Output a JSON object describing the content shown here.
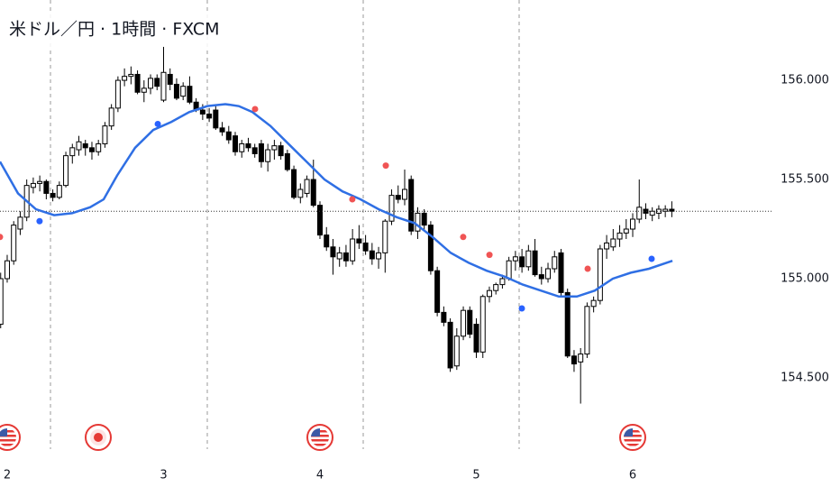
{
  "chart_data": {
    "type": "candlestick",
    "title": "米ドル／円 · 1時間 · FXCM",
    "x": [
      1.9583,
      2,
      2.0417,
      2.0833,
      2.125,
      2.1667,
      2.2083,
      2.25,
      2.2917,
      2.3333,
      2.375,
      2.4167,
      2.4583,
      2.5,
      2.5417,
      2.5833,
      2.625,
      2.6667,
      2.7083,
      2.75,
      2.7917,
      2.8333,
      2.875,
      2.9167,
      2.9583,
      3,
      3.0417,
      3.0833,
      3.125,
      3.1667,
      3.2083,
      3.25,
      3.2917,
      3.3333,
      3.375,
      3.4167,
      3.4583,
      3.5,
      3.5417,
      3.5833,
      3.625,
      3.6667,
      3.7083,
      3.75,
      3.7917,
      3.8333,
      3.875,
      3.9167,
      3.9583,
      4,
      4.0417,
      4.0833,
      4.125,
      4.1667,
      4.2083,
      4.25,
      4.2917,
      4.3333,
      4.375,
      4.4167,
      4.4583,
      4.5,
      4.5417,
      4.5833,
      4.625,
      4.6667,
      4.7083,
      4.75,
      4.7917,
      4.8333,
      4.875,
      4.9167,
      4.9583,
      5,
      5.0417,
      5.0833,
      5.125,
      5.1667,
      5.2083,
      5.25,
      5.2917,
      5.3333,
      5.375,
      5.4167,
      5.4583,
      5.5,
      5.5417,
      5.5833,
      5.625,
      5.6667,
      5.7083,
      5.75,
      5.7917,
      5.8333,
      5.875,
      5.9167,
      5.9583,
      6,
      6.0417,
      6.0833,
      6.125,
      6.1667,
      6.2083,
      6.25
    ],
    "ohlc": [
      [
        154.77,
        155.03,
        154.75,
        155.0
      ],
      [
        155.0,
        155.12,
        154.98,
        155.09
      ],
      [
        155.09,
        155.29,
        155.07,
        155.27
      ],
      [
        155.25,
        155.34,
        155.22,
        155.31
      ],
      [
        155.31,
        155.5,
        155.29,
        155.47
      ],
      [
        155.46,
        155.51,
        155.43,
        155.48
      ],
      [
        155.48,
        155.52,
        155.44,
        155.49
      ],
      [
        155.49,
        155.5,
        155.4,
        155.43
      ],
      [
        155.43,
        155.45,
        155.39,
        155.41
      ],
      [
        155.41,
        155.49,
        155.4,
        155.47
      ],
      [
        155.47,
        155.64,
        155.46,
        155.62
      ],
      [
        155.62,
        155.68,
        155.58,
        155.66
      ],
      [
        155.65,
        155.72,
        155.62,
        155.69
      ],
      [
        155.68,
        155.7,
        155.62,
        155.66
      ],
      [
        155.66,
        155.69,
        155.6,
        155.64
      ],
      [
        155.64,
        155.7,
        155.62,
        155.68
      ],
      [
        155.68,
        155.79,
        155.66,
        155.77
      ],
      [
        155.77,
        155.88,
        155.75,
        155.86
      ],
      [
        155.86,
        156.02,
        155.84,
        156.0
      ],
      [
        156.0,
        156.06,
        155.97,
        156.02
      ],
      [
        156.02,
        156.07,
        155.98,
        156.03
      ],
      [
        156.03,
        156.05,
        155.93,
        155.94
      ],
      [
        155.94,
        156.0,
        155.89,
        155.96
      ],
      [
        155.96,
        156.03,
        155.93,
        156.01
      ],
      [
        156.01,
        156.03,
        155.95,
        155.97
      ],
      [
        155.9,
        156.17,
        155.89,
        156.04
      ],
      [
        156.03,
        156.06,
        155.95,
        155.98
      ],
      [
        155.98,
        156.01,
        155.9,
        155.91
      ],
      [
        155.92,
        155.99,
        155.9,
        155.97
      ],
      [
        155.97,
        156.02,
        155.88,
        155.89
      ],
      [
        155.89,
        155.91,
        155.84,
        155.85
      ],
      [
        155.85,
        155.88,
        155.8,
        155.83
      ],
      [
        155.83,
        155.86,
        155.79,
        155.81
      ],
      [
        155.85,
        155.87,
        155.75,
        155.76
      ],
      [
        155.76,
        155.79,
        155.72,
        155.74
      ],
      [
        155.74,
        155.77,
        155.68,
        155.7
      ],
      [
        155.72,
        155.74,
        155.62,
        155.64
      ],
      [
        155.64,
        155.7,
        155.61,
        155.68
      ],
      [
        155.68,
        155.71,
        155.64,
        155.66
      ],
      [
        155.66,
        155.68,
        155.61,
        155.63
      ],
      [
        155.68,
        155.7,
        155.56,
        155.59
      ],
      [
        155.59,
        155.68,
        155.54,
        155.65
      ],
      [
        155.65,
        155.7,
        155.6,
        155.67
      ],
      [
        155.67,
        155.69,
        155.6,
        155.62
      ],
      [
        155.63,
        155.65,
        155.54,
        155.55
      ],
      [
        155.55,
        155.57,
        155.4,
        155.41
      ],
      [
        155.41,
        155.48,
        155.38,
        155.45
      ],
      [
        155.43,
        155.52,
        155.41,
        155.5
      ],
      [
        155.5,
        155.6,
        155.36,
        155.37
      ],
      [
        155.37,
        155.39,
        155.2,
        155.22
      ],
      [
        155.22,
        155.26,
        155.14,
        155.16
      ],
      [
        155.16,
        155.2,
        155.02,
        155.11
      ],
      [
        155.1,
        155.16,
        155.06,
        155.13
      ],
      [
        155.13,
        155.17,
        155.06,
        155.09
      ],
      [
        155.09,
        155.25,
        155.07,
        155.2
      ],
      [
        155.2,
        155.27,
        155.15,
        155.18
      ],
      [
        155.18,
        155.22,
        155.12,
        155.14
      ],
      [
        155.14,
        155.18,
        155.07,
        155.1
      ],
      [
        155.1,
        155.16,
        155.05,
        155.13
      ],
      [
        155.13,
        155.3,
        155.03,
        155.29
      ],
      [
        155.29,
        155.45,
        155.27,
        155.42
      ],
      [
        155.42,
        155.47,
        155.38,
        155.4
      ],
      [
        155.4,
        155.55,
        155.37,
        155.45
      ],
      [
        155.5,
        155.52,
        155.22,
        155.24
      ],
      [
        155.24,
        155.36,
        155.2,
        155.33
      ],
      [
        155.33,
        155.35,
        155.24,
        155.27
      ],
      [
        155.27,
        155.29,
        155.02,
        155.04
      ],
      [
        155.04,
        155.06,
        154.81,
        154.83
      ],
      [
        154.83,
        154.86,
        154.76,
        154.78
      ],
      [
        154.78,
        154.8,
        154.53,
        154.55
      ],
      [
        154.56,
        154.75,
        154.54,
        154.71
      ],
      [
        154.71,
        154.86,
        154.69,
        154.84
      ],
      [
        154.84,
        154.86,
        154.7,
        154.72
      ],
      [
        154.77,
        154.8,
        154.6,
        154.63
      ],
      [
        154.63,
        154.92,
        154.6,
        154.91
      ],
      [
        154.91,
        154.96,
        154.88,
        154.94
      ],
      [
        154.94,
        154.98,
        154.92,
        154.97
      ],
      [
        154.97,
        155.02,
        154.95,
        155.0
      ],
      [
        155.0,
        155.11,
        154.99,
        155.09
      ],
      [
        155.09,
        155.14,
        155.04,
        155.11
      ],
      [
        155.11,
        155.15,
        155.03,
        155.06
      ],
      [
        155.06,
        155.17,
        155.04,
        155.14
      ],
      [
        155.14,
        155.2,
        155.01,
        155.02
      ],
      [
        155.02,
        155.06,
        154.97,
        155.0
      ],
      [
        155.0,
        155.08,
        154.98,
        155.05
      ],
      [
        155.05,
        155.14,
        155.03,
        155.11
      ],
      [
        155.13,
        155.15,
        154.91,
        154.93
      ],
      [
        154.93,
        154.95,
        154.6,
        154.61
      ],
      [
        154.61,
        154.64,
        154.53,
        154.57
      ],
      [
        154.58,
        154.65,
        154.37,
        154.62
      ],
      [
        154.62,
        154.88,
        154.6,
        154.86
      ],
      [
        154.86,
        154.91,
        154.83,
        154.89
      ],
      [
        154.89,
        155.17,
        154.87,
        155.15
      ],
      [
        155.15,
        155.22,
        155.1,
        155.18
      ],
      [
        155.16,
        155.25,
        155.14,
        155.2
      ],
      [
        155.2,
        155.27,
        155.16,
        155.23
      ],
      [
        155.23,
        155.3,
        155.2,
        155.25
      ],
      [
        155.25,
        155.33,
        155.21,
        155.3
      ],
      [
        155.3,
        155.5,
        155.28,
        155.36
      ],
      [
        155.35,
        155.38,
        155.3,
        155.33
      ],
      [
        155.32,
        155.36,
        155.29,
        155.34
      ],
      [
        155.33,
        155.37,
        155.3,
        155.35
      ],
      [
        155.34,
        155.37,
        155.31,
        155.35
      ],
      [
        155.35,
        155.39,
        155.31,
        155.34
      ]
    ],
    "up_color": "#ffffff",
    "down_color": "#000000",
    "ma": {
      "color": "#2f6fe4",
      "x": [
        1.954,
        2.069,
        2.184,
        2.3,
        2.415,
        2.53,
        2.617,
        2.703,
        2.818,
        2.934,
        3.049,
        3.164,
        3.28,
        3.395,
        3.481,
        3.568,
        3.683,
        3.798,
        3.914,
        4.029,
        4.144,
        4.259,
        4.375,
        4.49,
        4.605,
        4.72,
        4.836,
        4.951,
        5.066,
        5.182,
        5.297,
        5.412,
        5.527,
        5.643,
        5.758,
        5.873,
        5.988,
        6.104,
        6.254
      ],
      "values": [
        155.59,
        155.43,
        155.35,
        155.32,
        155.33,
        155.36,
        155.4,
        155.52,
        155.66,
        155.75,
        155.79,
        155.84,
        155.87,
        155.88,
        155.87,
        155.84,
        155.77,
        155.68,
        155.59,
        155.5,
        155.44,
        155.4,
        155.35,
        155.31,
        155.28,
        155.21,
        155.13,
        155.08,
        155.04,
        155.01,
        154.97,
        154.94,
        154.91,
        154.91,
        154.94,
        155.0,
        155.03,
        155.05,
        155.09
      ]
    },
    "pivots": [
      {
        "color": "#f05454",
        "x": [
          1.954,
          3.585,
          4.207,
          4.421,
          4.916,
          5.084,
          5.712
        ],
        "values": [
          155.21,
          155.855,
          155.4,
          155.57,
          155.21,
          155.12,
          155.05
        ]
      },
      {
        "color": "#2962ff",
        "x": [
          2.207,
          2.963,
          5.291,
          6.121
        ],
        "values": [
          155.29,
          155.78,
          154.85,
          155.1
        ]
      }
    ],
    "xlim": [
      1.954,
      6.899
    ],
    "ylim": [
      154.086,
      156.405
    ],
    "xticks": [
      2,
      3,
      4,
      5,
      6
    ],
    "yticks": [
      {
        "value": 156,
        "label": "156.000"
      },
      {
        "value": 155.5,
        "label": "155.500"
      },
      {
        "value": 155,
        "label": "155.000"
      },
      {
        "value": 154.5,
        "label": "154.500"
      }
    ]
  }
}
